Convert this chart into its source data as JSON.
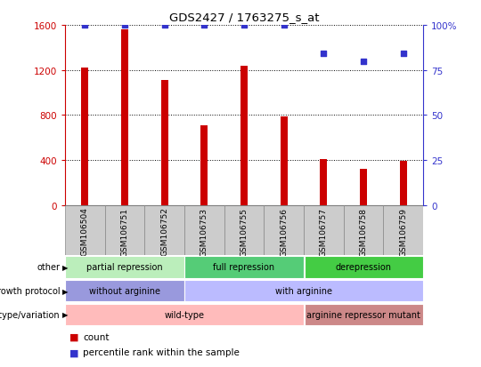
{
  "title": "GDS2427 / 1763275_s_at",
  "samples": [
    "GSM106504",
    "GSM106751",
    "GSM106752",
    "GSM106753",
    "GSM106755",
    "GSM106756",
    "GSM106757",
    "GSM106758",
    "GSM106759"
  ],
  "counts": [
    1220,
    1560,
    1110,
    710,
    1240,
    790,
    410,
    325,
    390
  ],
  "percentiles": [
    100,
    100,
    100,
    100,
    100,
    100,
    84,
    80,
    84
  ],
  "bar_color": "#cc0000",
  "dot_color": "#3333cc",
  "left_axis_color": "#cc0000",
  "right_axis_color": "#3333cc",
  "ylim_left": [
    0,
    1600
  ],
  "ylim_right": [
    0,
    100
  ],
  "yticks_left": [
    0,
    400,
    800,
    1200,
    1600
  ],
  "yticks_right": [
    0,
    25,
    50,
    75,
    100
  ],
  "ytick_labels_right": [
    "0",
    "25",
    "50",
    "75",
    "100%"
  ],
  "annotation_rows": [
    {
      "label": "other",
      "segments": [
        {
          "text": "partial repression",
          "start": 0,
          "end": 3,
          "color": "#bbeebb"
        },
        {
          "text": "full repression",
          "start": 3,
          "end": 6,
          "color": "#55cc77"
        },
        {
          "text": "derepression",
          "start": 6,
          "end": 9,
          "color": "#44cc44"
        }
      ]
    },
    {
      "label": "growth protocol",
      "segments": [
        {
          "text": "without arginine",
          "start": 0,
          "end": 3,
          "color": "#9999dd"
        },
        {
          "text": "with arginine",
          "start": 3,
          "end": 9,
          "color": "#bbbbff"
        }
      ]
    },
    {
      "label": "genotype/variation",
      "segments": [
        {
          "text": "wild-type",
          "start": 0,
          "end": 6,
          "color": "#ffbbbb"
        },
        {
          "text": "arginine repressor mutant",
          "start": 6,
          "end": 9,
          "color": "#cc8888"
        }
      ]
    }
  ],
  "legend": [
    {
      "label": "count",
      "color": "#cc0000"
    },
    {
      "label": "percentile rank within the sample",
      "color": "#3333cc"
    }
  ],
  "xtick_bg_color": "#cccccc",
  "xtick_border_color": "#888888"
}
